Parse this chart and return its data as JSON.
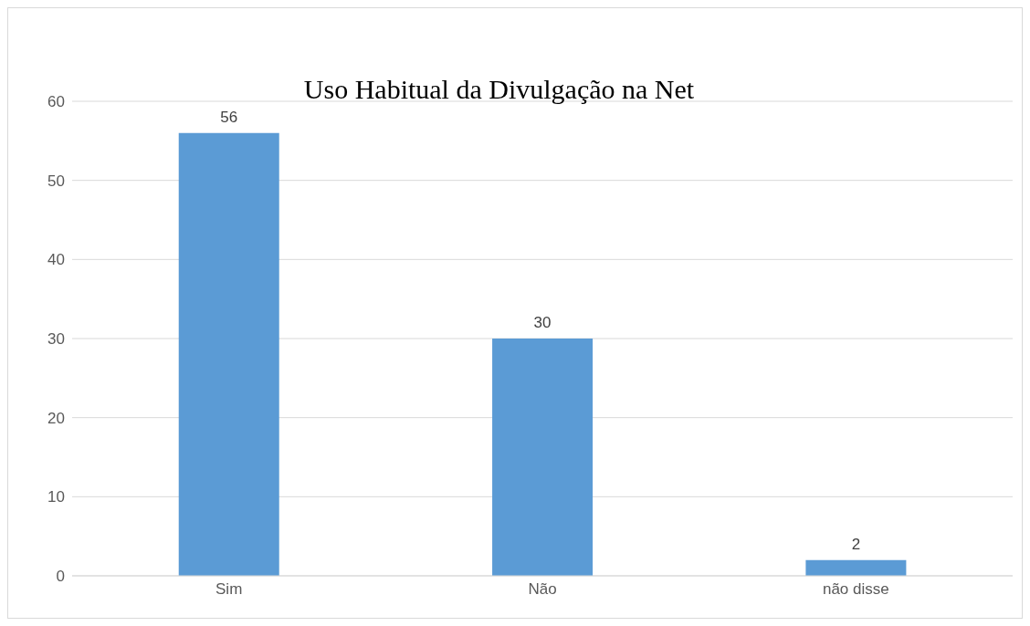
{
  "chart_data": {
    "type": "bar",
    "title": "Uso Habitual da Divulgação na Net",
    "categories": [
      "Sim",
      "Não",
      "não disse"
    ],
    "values": [
      56,
      30,
      2
    ],
    "color": "#5b9bd5",
    "ylim": [
      0,
      60
    ],
    "yticks": [
      0,
      10,
      20,
      30,
      40,
      50,
      60
    ],
    "grid": "y",
    "data_labels": true
  }
}
